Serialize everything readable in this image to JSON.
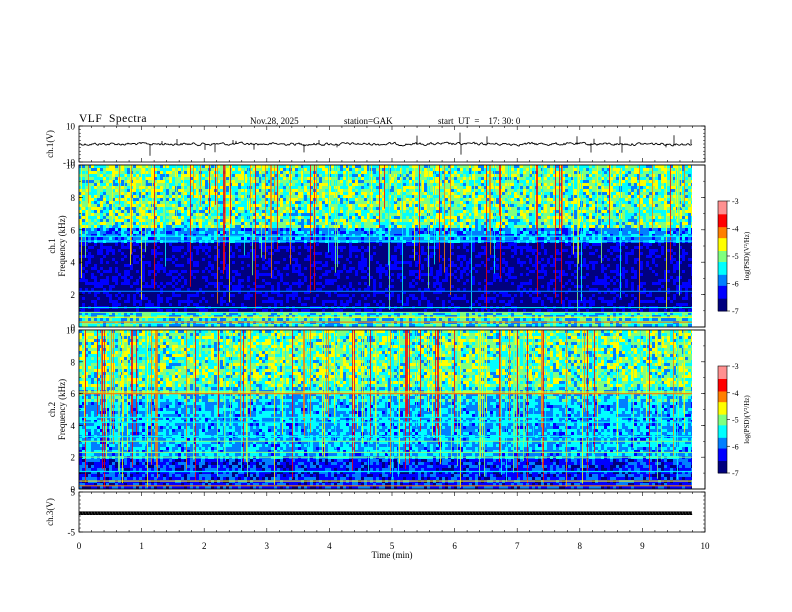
{
  "header": {
    "title": "VLF  Spectra",
    "date": "Nov.28, 2025",
    "station": "station=GAK",
    "start_ut": "start  UT  =    17: 30: 0"
  },
  "chart_data": [
    {
      "type": "line",
      "name": "ch1-waveform",
      "ylabel": "ch.1(V)",
      "ylim": [
        -10,
        10
      ],
      "yticks": [
        "10",
        "-10"
      ],
      "baseline": 0,
      "xlim": [
        0,
        10
      ]
    },
    {
      "type": "heatmap",
      "name": "ch1-spectrogram",
      "ylabel": "ch.1\nFrequency  (kHz)",
      "ylim": [
        0,
        10
      ],
      "yticks": [
        "0",
        "2",
        "4",
        "6",
        "8",
        "10"
      ],
      "xlim": [
        0,
        9.85
      ],
      "colorbar": {
        "label": "log(PSD)(V²/Hz)",
        "range": [
          -7,
          -3
        ],
        "ticks": [
          "-3",
          "-4",
          "-5",
          "-6",
          "-7"
        ]
      }
    },
    {
      "type": "heatmap",
      "name": "ch2-spectrogram",
      "ylabel": "ch.2\nFrequency  (kHz)",
      "ylim": [
        0,
        10
      ],
      "yticks": [
        "0",
        "2",
        "4",
        "6",
        "8",
        "10"
      ],
      "xlim": [
        0,
        9.85
      ],
      "colorbar": {
        "label": "log(PSD)(V²/Hz)",
        "range": [
          -7,
          -3
        ],
        "ticks": [
          "-3",
          "-4",
          "-5",
          "-6",
          "-7"
        ]
      }
    },
    {
      "type": "line",
      "name": "ch3-waveform",
      "ylabel": "ch.3(V)",
      "ylim": [
        -5,
        5
      ],
      "yticks": [
        "5",
        "-5"
      ],
      "baseline": -0.3,
      "xlim": [
        0,
        10
      ]
    }
  ],
  "x_axis": {
    "label": "Time  (min)",
    "ticks": [
      "0",
      "1",
      "2",
      "3",
      "4",
      "5",
      "6",
      "7",
      "8",
      "9",
      "10"
    ],
    "range": [
      0,
      10
    ]
  },
  "colors": {
    "colormap": [
      "#00007f",
      "#0000ff",
      "#007fff",
      "#00ffff",
      "#7fff7f",
      "#ffff00",
      "#ff7f00",
      "#ff0000",
      "#ff9090"
    ],
    "line": "#000000"
  }
}
